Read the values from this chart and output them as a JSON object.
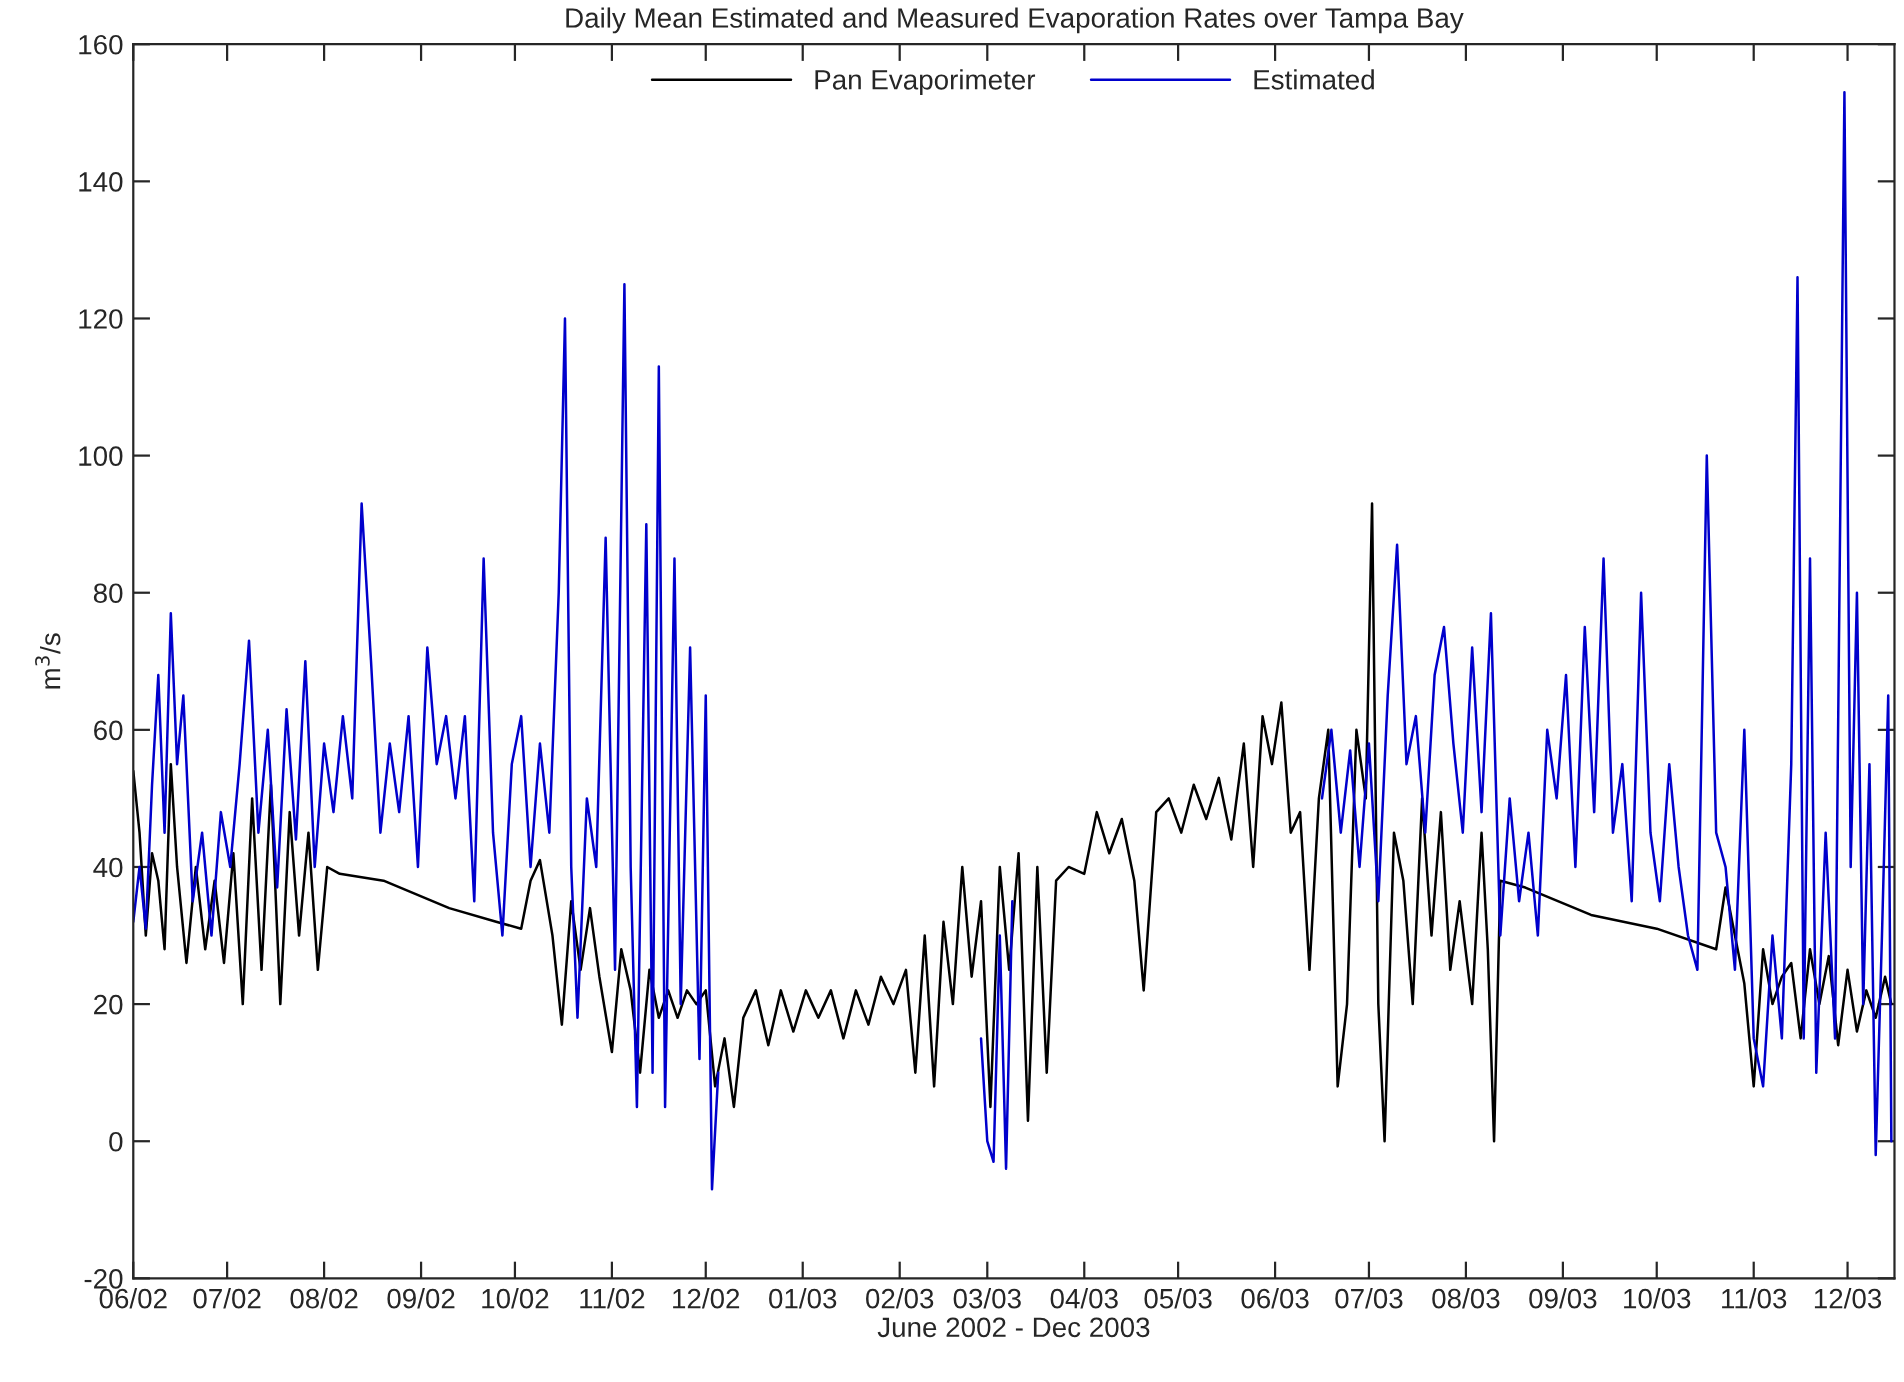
{
  "chart_data": {
    "type": "line",
    "title": "Daily Mean Estimated and Measured Evaporation Rates over Tampa Bay",
    "xlabel": "June 2002 - Dec 2003",
    "ylabel": "m$^{3}$/s",
    "ylim": [
      -20,
      160
    ],
    "yticks": [
      -20,
      0,
      20,
      40,
      60,
      80,
      100,
      120,
      140,
      160
    ],
    "xlim": [
      "2002-06-01",
      "2003-12-16"
    ],
    "xticks": [
      {
        "value": "2002-06-01",
        "label": "06/02"
      },
      {
        "value": "2002-07-01",
        "label": "07/02"
      },
      {
        "value": "2002-08-01",
        "label": "08/02"
      },
      {
        "value": "2002-09-01",
        "label": "09/02"
      },
      {
        "value": "2002-10-01",
        "label": "10/02"
      },
      {
        "value": "2002-11-01",
        "label": "11/02"
      },
      {
        "value": "2002-12-01",
        "label": "12/02"
      },
      {
        "value": "2003-01-01",
        "label": "01/03"
      },
      {
        "value": "2003-02-01",
        "label": "02/03"
      },
      {
        "value": "2003-03-01",
        "label": "03/03"
      },
      {
        "value": "2003-04-01",
        "label": "04/03"
      },
      {
        "value": "2003-05-01",
        "label": "05/03"
      },
      {
        "value": "2003-06-01",
        "label": "06/03"
      },
      {
        "value": "2003-07-01",
        "label": "07/03"
      },
      {
        "value": "2003-08-01",
        "label": "08/03"
      },
      {
        "value": "2003-09-01",
        "label": "09/03"
      },
      {
        "value": "2003-10-01",
        "label": "10/03"
      },
      {
        "value": "2003-11-01",
        "label": "11/03"
      },
      {
        "value": "2003-12-01",
        "label": "12/03"
      }
    ],
    "grid": false,
    "legend": "top",
    "marker": "none",
    "line_style": "solid",
    "series": [
      {
        "name": "Pan Evaporimeter",
        "color": "#000000",
        "x": [
          "2002-06-01",
          "2002-06-03",
          "2002-06-05",
          "2002-06-07",
          "2002-06-09",
          "2002-06-11",
          "2002-06-13",
          "2002-06-15",
          "2002-06-18",
          "2002-06-21",
          "2002-06-24",
          "2002-06-27",
          "2002-06-30",
          "2002-07-03",
          "2002-07-06",
          "2002-07-09",
          "2002-07-12",
          "2002-07-15",
          "2002-07-18",
          "2002-07-21",
          "2002-07-24",
          "2002-07-27",
          "2002-07-30",
          "2002-08-02",
          "2002-08-06",
          "2002-08-20",
          "2002-09-10",
          "2002-09-25",
          "2002-10-03",
          "2002-10-06",
          "2002-10-09",
          "2002-10-13",
          "2002-10-16",
          "2002-10-19",
          "2002-10-22",
          "2002-10-25",
          "2002-10-28",
          "2002-11-01",
          "2002-11-04",
          "2002-11-07",
          "2002-11-10",
          "2002-11-13",
          "2002-11-16",
          "2002-11-19",
          "2002-11-22",
          "2002-11-25",
          "2002-11-28",
          "2002-12-01",
          "2002-12-04",
          "2002-12-07",
          "2002-12-10",
          "2002-12-13",
          "2002-12-17",
          "2002-12-21",
          "2002-12-25",
          "2002-12-29",
          "2003-01-02",
          "2003-01-06",
          "2003-01-10",
          "2003-01-14",
          "2003-01-18",
          "2003-01-22",
          "2003-01-26",
          "2003-01-30",
          "2003-02-03",
          "2003-02-06",
          "2003-02-09",
          "2003-02-12",
          "2003-02-15",
          "2003-02-18",
          "2003-02-21",
          "2003-02-24",
          "2003-02-27",
          "2003-03-02",
          "2003-03-05",
          "2003-03-08",
          "2003-03-11",
          "2003-03-14",
          "2003-03-17",
          "2003-03-20",
          "2003-03-23",
          "2003-03-27",
          "2003-04-01",
          "2003-04-05",
          "2003-04-09",
          "2003-04-13",
          "2003-04-17",
          "2003-04-20",
          "2003-04-24",
          "2003-04-28",
          "2003-05-02",
          "2003-05-06",
          "2003-05-10",
          "2003-05-14",
          "2003-05-18",
          "2003-05-22",
          "2003-05-25",
          "2003-05-28",
          "2003-05-31",
          "2003-06-03",
          "2003-06-06",
          "2003-06-09",
          "2003-06-12",
          "2003-06-15",
          "2003-06-18",
          "2003-06-21",
          "2003-06-24",
          "2003-06-27",
          "2003-06-30",
          "2003-07-02",
          "2003-07-04",
          "2003-07-06",
          "2003-07-09",
          "2003-07-12",
          "2003-07-15",
          "2003-07-18",
          "2003-07-21",
          "2003-07-24",
          "2003-07-27",
          "2003-07-30",
          "2003-08-03",
          "2003-08-06",
          "2003-08-08",
          "2003-08-10",
          "2003-08-12",
          "2003-08-20",
          "2003-09-10",
          "2003-10-01",
          "2003-10-20",
          "2003-10-23",
          "2003-10-26",
          "2003-10-29",
          "2003-11-01",
          "2003-11-04",
          "2003-11-07",
          "2003-11-10",
          "2003-11-13",
          "2003-11-16",
          "2003-11-19",
          "2003-11-22",
          "2003-11-25",
          "2003-11-28",
          "2003-12-01",
          "2003-12-04",
          "2003-12-07",
          "2003-12-10",
          "2003-12-13",
          "2003-12-15"
        ],
        "values": [
          54,
          45,
          30,
          42,
          38,
          28,
          55,
          40,
          26,
          40,
          28,
          38,
          26,
          42,
          20,
          50,
          25,
          52,
          20,
          48,
          30,
          45,
          25,
          40,
          39,
          38,
          34,
          32,
          31,
          38,
          41,
          30,
          17,
          35,
          25,
          34,
          24,
          13,
          28,
          22,
          10,
          25,
          18,
          22,
          18,
          22,
          20,
          22,
          8,
          15,
          5,
          18,
          22,
          14,
          22,
          16,
          22,
          18,
          22,
          15,
          22,
          17,
          24,
          20,
          25,
          10,
          30,
          8,
          32,
          20,
          40,
          24,
          35,
          5,
          40,
          25,
          42,
          3,
          40,
          10,
          38,
          40,
          39,
          48,
          42,
          47,
          38,
          22,
          48,
          50,
          45,
          52,
          47,
          53,
          44,
          58,
          40,
          62,
          55,
          64,
          45,
          48,
          25,
          50,
          60,
          8,
          20,
          60,
          50,
          93,
          20,
          0,
          45,
          38,
          20,
          50,
          30,
          48,
          25,
          35,
          20,
          45,
          28,
          0,
          38,
          37,
          33,
          31,
          28,
          37,
          30,
          23,
          8,
          28,
          20,
          24,
          26,
          15,
          28,
          20,
          27,
          14,
          25,
          16,
          22,
          18,
          24,
          20
        ]
      },
      {
        "name": "Estimated",
        "color": "#0000cc",
        "x": [
          "2002-06-01",
          "2002-06-03",
          "2002-06-05",
          "2002-06-07",
          "2002-06-09",
          "2002-06-11",
          "2002-06-13",
          "2002-06-15",
          "2002-06-17",
          "2002-06-20",
          "2002-06-23",
          "2002-06-26",
          "2002-06-29",
          "2002-07-02",
          "2002-07-05",
          "2002-07-08",
          "2002-07-11",
          "2002-07-14",
          "2002-07-17",
          "2002-07-20",
          "2002-07-23",
          "2002-07-26",
          "2002-07-29",
          "2002-08-01",
          "2002-08-04",
          "2002-08-07",
          "2002-08-10",
          "2002-08-13",
          "2002-08-16",
          "2002-08-19",
          "2002-08-22",
          "2002-08-25",
          "2002-08-28",
          "2002-08-31",
          "2002-09-03",
          "2002-09-06",
          "2002-09-09",
          "2002-09-12",
          "2002-09-15",
          "2002-09-18",
          "2002-09-21",
          "2002-09-24",
          "2002-09-27",
          "2002-09-30",
          "2002-10-03",
          "2002-10-06",
          "2002-10-09",
          "2002-10-12",
          "2002-10-15",
          "2002-10-17",
          "2002-10-19",
          "2002-10-21",
          "2002-10-24",
          "2002-10-27",
          "2002-10-30",
          "2002-11-02",
          "2002-11-05",
          "2002-11-07",
          "2002-11-09",
          "2002-11-12",
          "2002-11-14",
          "2002-11-16",
          "2002-11-18",
          "2002-11-21",
          "2002-11-23",
          "2002-11-26",
          "2002-11-29",
          "2002-12-01",
          "2002-12-03",
          "2002-12-05",
          "2003-01-15",
          "2003-02-27",
          "2003-03-01",
          "2003-03-03",
          "2003-03-05",
          "2003-03-07",
          "2003-03-09",
          "2003-03-15",
          "2003-06-16",
          "2003-06-19",
          "2003-06-22",
          "2003-06-25",
          "2003-06-28",
          "2003-07-01",
          "2003-07-04",
          "2003-07-07",
          "2003-07-10",
          "2003-07-13",
          "2003-07-16",
          "2003-07-19",
          "2003-07-22",
          "2003-07-25",
          "2003-07-28",
          "2003-07-31",
          "2003-08-03",
          "2003-08-06",
          "2003-08-09",
          "2003-08-12",
          "2003-08-15",
          "2003-08-18",
          "2003-08-21",
          "2003-08-24",
          "2003-08-27",
          "2003-08-30",
          "2003-09-02",
          "2003-09-05",
          "2003-09-08",
          "2003-09-11",
          "2003-09-14",
          "2003-09-17",
          "2003-09-20",
          "2003-09-23",
          "2003-09-26",
          "2003-09-29",
          "2003-10-02",
          "2003-10-05",
          "2003-10-08",
          "2003-10-11",
          "2003-10-14",
          "2003-10-17",
          "2003-10-20",
          "2003-10-23",
          "2003-10-26",
          "2003-10-29",
          "2003-11-01",
          "2003-11-04",
          "2003-11-07",
          "2003-11-10",
          "2003-11-13",
          "2003-11-15",
          "2003-11-17",
          "2003-11-19",
          "2003-11-21",
          "2003-11-24",
          "2003-11-27",
          "2003-11-30",
          "2003-12-02",
          "2003-12-04",
          "2003-12-06",
          "2003-12-08",
          "2003-12-10",
          "2003-12-12",
          "2003-12-14",
          "2003-12-15"
        ],
        "values": [
          32,
          40,
          31,
          52,
          68,
          45,
          77,
          55,
          65,
          35,
          45,
          30,
          48,
          40,
          55,
          73,
          45,
          60,
          37,
          63,
          44,
          70,
          40,
          58,
          48,
          62,
          50,
          93,
          70,
          45,
          58,
          48,
          62,
          40,
          72,
          55,
          62,
          50,
          62,
          35,
          85,
          45,
          30,
          55,
          62,
          40,
          58,
          45,
          80,
          120,
          40,
          18,
          50,
          40,
          88,
          25,
          125,
          40,
          5,
          90,
          10,
          113,
          5,
          85,
          20,
          72,
          12,
          65,
          -7,
          10,
          null,
          15,
          0,
          -3,
          30,
          -4,
          35,
          null,
          50,
          60,
          45,
          57,
          40,
          58,
          35,
          65,
          87,
          55,
          62,
          45,
          68,
          75,
          58,
          45,
          72,
          48,
          77,
          30,
          50,
          35,
          45,
          30,
          60,
          50,
          68,
          40,
          75,
          48,
          85,
          45,
          55,
          35,
          80,
          45,
          35,
          55,
          40,
          30,
          25,
          100,
          45,
          40,
          25,
          60,
          15,
          8,
          30,
          15,
          55,
          126,
          15,
          85,
          10,
          45,
          15,
          153,
          40,
          80,
          20,
          55,
          -2,
          30,
          65,
          0
        ]
      }
    ]
  }
}
